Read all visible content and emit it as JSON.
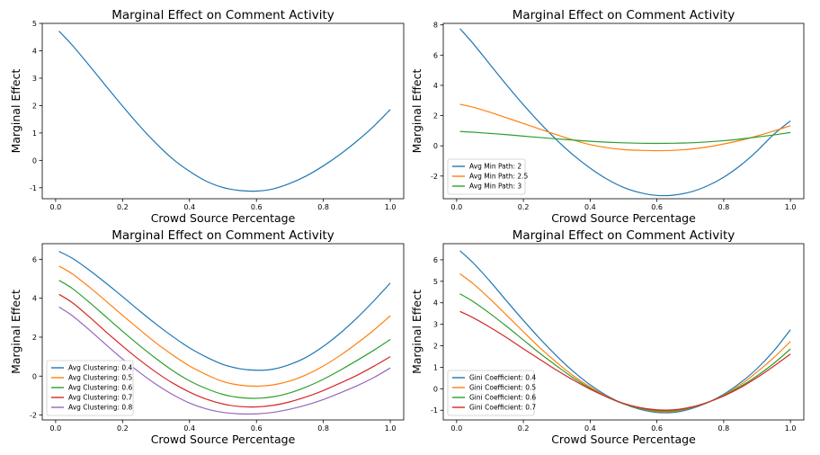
{
  "figure": {
    "colors": [
      "#1f77b4",
      "#ff7f0e",
      "#2ca02c",
      "#d62728",
      "#9467bd"
    ]
  },
  "chart_data": [
    {
      "type": "line",
      "title": "Marginal Effect on Comment Activity",
      "xlabel": "Crowd Source Percentage",
      "ylabel": "Marginal Effect",
      "xlim": [
        -0.04,
        1.04
      ],
      "ylim": [
        -1.4,
        5.0
      ],
      "xticks": [
        "0.0",
        "0.2",
        "0.4",
        "0.6",
        "0.8",
        "1.0"
      ],
      "yticks": [
        "-1",
        "0",
        "1",
        "2",
        "3",
        "4",
        "5"
      ],
      "legend": null,
      "x": [
        0.01,
        0.05,
        0.1,
        0.15,
        0.2,
        0.25,
        0.3,
        0.35,
        0.4,
        0.45,
        0.5,
        0.55,
        0.6,
        0.65,
        0.7,
        0.75,
        0.8,
        0.85,
        0.9,
        0.95,
        1.0
      ],
      "series": [
        {
          "name": "",
          "values": [
            4.72,
            4.2,
            3.47,
            2.72,
            1.98,
            1.27,
            0.62,
            0.05,
            -0.4,
            -0.76,
            -0.99,
            -1.1,
            -1.12,
            -1.04,
            -0.84,
            -0.56,
            -0.2,
            0.22,
            0.7,
            1.24,
            1.86
          ]
        }
      ]
    },
    {
      "type": "line",
      "title": "Marginal Effect on Comment Activity",
      "xlabel": "Crowd Source Percentage",
      "ylabel": "Marginal Effect",
      "xlim": [
        -0.04,
        1.04
      ],
      "ylim": [
        -3.5,
        8.1
      ],
      "xticks": [
        "0.0",
        "0.2",
        "0.4",
        "0.6",
        "0.8",
        "1.0"
      ],
      "yticks": [
        "-2",
        "0",
        "2",
        "4",
        "6",
        "8"
      ],
      "legend": "lower-left",
      "x": [
        0.01,
        0.05,
        0.1,
        0.15,
        0.2,
        0.25,
        0.3,
        0.35,
        0.4,
        0.45,
        0.5,
        0.55,
        0.6,
        0.65,
        0.7,
        0.75,
        0.8,
        0.85,
        0.9,
        0.95,
        1.0
      ],
      "series": [
        {
          "name": "Avg Min Path: 2",
          "values": [
            7.75,
            6.75,
            5.38,
            4.02,
            2.72,
            1.5,
            0.38,
            -0.62,
            -1.48,
            -2.2,
            -2.75,
            -3.1,
            -3.28,
            -3.26,
            -3.06,
            -2.66,
            -2.08,
            -1.3,
            -0.34,
            0.76,
            1.65
          ]
        },
        {
          "name": "Avg Min Path: 2.5",
          "values": [
            2.75,
            2.55,
            2.22,
            1.85,
            1.48,
            1.1,
            0.73,
            0.38,
            0.08,
            -0.12,
            -0.25,
            -0.3,
            -0.32,
            -0.3,
            -0.22,
            -0.08,
            0.12,
            0.36,
            0.65,
            0.98,
            1.33
          ]
        },
        {
          "name": "Avg Min Path: 3",
          "values": [
            0.95,
            0.9,
            0.82,
            0.74,
            0.64,
            0.55,
            0.46,
            0.38,
            0.3,
            0.24,
            0.2,
            0.17,
            0.16,
            0.17,
            0.2,
            0.26,
            0.34,
            0.45,
            0.58,
            0.72,
            0.88
          ]
        }
      ]
    },
    {
      "type": "line",
      "title": "Marginal Effect on Comment Activity",
      "xlabel": "Crowd Source Percentage",
      "ylabel": "Marginal Effect",
      "xlim": [
        -0.04,
        1.04
      ],
      "ylim": [
        -2.25,
        6.8
      ],
      "xticks": [
        "0.0",
        "0.2",
        "0.4",
        "0.6",
        "0.8",
        "1.0"
      ],
      "yticks": [
        "-2",
        "0",
        "2",
        "4",
        "6"
      ],
      "legend": "lower-left",
      "x": [
        0.01,
        0.05,
        0.1,
        0.15,
        0.2,
        0.25,
        0.3,
        0.35,
        0.4,
        0.45,
        0.5,
        0.55,
        0.6,
        0.65,
        0.7,
        0.75,
        0.8,
        0.85,
        0.9,
        0.95,
        1.0
      ],
      "series": [
        {
          "name": "Avg Clustering: 0.4",
          "values": [
            6.4,
            6.05,
            5.45,
            4.78,
            4.08,
            3.36,
            2.67,
            2.03,
            1.45,
            0.98,
            0.6,
            0.38,
            0.3,
            0.36,
            0.6,
            0.98,
            1.53,
            2.2,
            2.98,
            3.85,
            4.78
          ]
        },
        {
          "name": "Avg Clustering: 0.5",
          "values": [
            5.65,
            5.25,
            4.58,
            3.86,
            3.12,
            2.4,
            1.7,
            1.08,
            0.52,
            0.08,
            -0.28,
            -0.46,
            -0.52,
            -0.45,
            -0.25,
            0.08,
            0.52,
            1.06,
            1.68,
            2.35,
            3.1
          ]
        },
        {
          "name": "Avg Clustering: 0.6",
          "values": [
            4.92,
            4.5,
            3.8,
            3.05,
            2.3,
            1.58,
            0.9,
            0.28,
            -0.24,
            -0.64,
            -0.94,
            -1.1,
            -1.14,
            -1.06,
            -0.86,
            -0.55,
            -0.16,
            0.3,
            0.8,
            1.32,
            1.88
          ]
        },
        {
          "name": "Avg Clustering: 0.7",
          "values": [
            4.2,
            3.77,
            3.05,
            2.28,
            1.54,
            0.84,
            0.2,
            -0.36,
            -0.82,
            -1.18,
            -1.43,
            -1.56,
            -1.58,
            -1.5,
            -1.32,
            -1.06,
            -0.74,
            -0.36,
            0.04,
            0.5,
            1.0
          ]
        },
        {
          "name": "Avg Clustering: 0.8",
          "values": [
            3.55,
            3.1,
            2.38,
            1.62,
            0.88,
            0.2,
            -0.42,
            -0.95,
            -1.38,
            -1.68,
            -1.86,
            -1.94,
            -1.94,
            -1.86,
            -1.7,
            -1.48,
            -1.2,
            -0.86,
            -0.5,
            -0.08,
            0.42
          ]
        }
      ]
    },
    {
      "type": "line",
      "title": "Marginal Effect on Comment Activity",
      "xlabel": "Crowd Source Percentage",
      "ylabel": "Marginal Effect",
      "xlim": [
        -0.04,
        1.04
      ],
      "ylim": [
        -1.45,
        6.75
      ],
      "xticks": [
        "0.0",
        "0.2",
        "0.4",
        "0.6",
        "0.8",
        "1.0"
      ],
      "yticks": [
        "-1",
        "0",
        "1",
        "2",
        "3",
        "4",
        "5",
        "6"
      ],
      "legend": "lower-left",
      "x": [
        0.01,
        0.05,
        0.1,
        0.15,
        0.2,
        0.25,
        0.3,
        0.35,
        0.4,
        0.45,
        0.5,
        0.55,
        0.6,
        0.65,
        0.7,
        0.75,
        0.8,
        0.85,
        0.9,
        0.95,
        1.0
      ],
      "series": [
        {
          "name": "Gini Coefficient: 0.4",
          "values": [
            6.42,
            5.85,
            5.0,
            4.08,
            3.18,
            2.32,
            1.52,
            0.8,
            0.18,
            -0.32,
            -0.7,
            -0.96,
            -1.1,
            -1.1,
            -0.94,
            -0.66,
            -0.26,
            0.28,
            0.94,
            1.76,
            2.75
          ]
        },
        {
          "name": "Gini Coefficient: 0.5",
          "values": [
            5.35,
            4.88,
            4.18,
            3.42,
            2.65,
            1.9,
            1.22,
            0.6,
            0.08,
            -0.36,
            -0.7,
            -0.92,
            -1.06,
            -1.06,
            -0.9,
            -0.65,
            -0.3,
            0.18,
            0.78,
            1.45,
            2.2
          ]
        },
        {
          "name": "Gini Coefficient: 0.6",
          "values": [
            4.42,
            4.05,
            3.5,
            2.9,
            2.27,
            1.64,
            1.06,
            0.5,
            0.02,
            -0.38,
            -0.7,
            -0.9,
            -1.02,
            -1.02,
            -0.88,
            -0.64,
            -0.32,
            0.1,
            0.6,
            1.18,
            1.85
          ]
        },
        {
          "name": "Gini Coefficient: 0.7",
          "values": [
            3.6,
            3.3,
            2.86,
            2.38,
            1.86,
            1.36,
            0.86,
            0.4,
            -0.02,
            -0.38,
            -0.68,
            -0.88,
            -0.98,
            -0.98,
            -0.86,
            -0.64,
            -0.34,
            0.05,
            0.52,
            1.05,
            1.62
          ]
        }
      ]
    }
  ]
}
